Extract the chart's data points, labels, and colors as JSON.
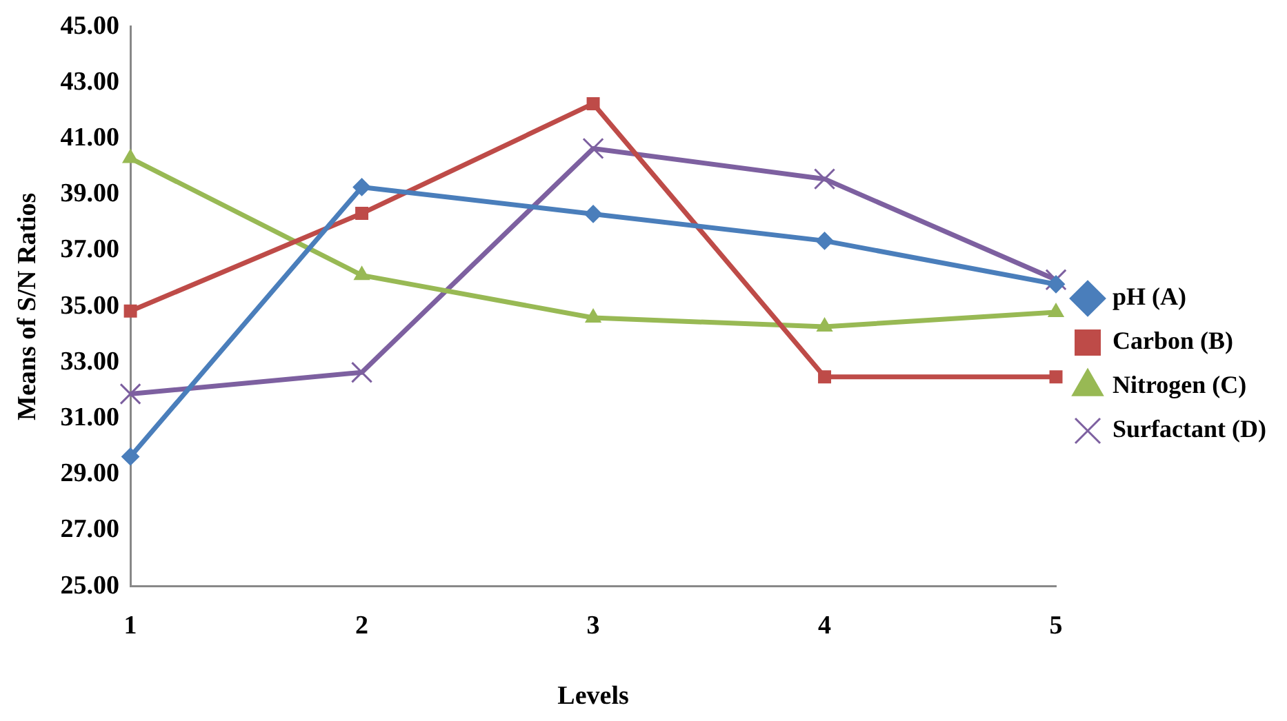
{
  "chart_data": {
    "type": "line",
    "xlabel": "Levels",
    "ylabel": "Means of S/N Ratios",
    "categories": [
      "1",
      "2",
      "3",
      "4",
      "5"
    ],
    "series": [
      {
        "name": "pH (A)",
        "color": "#4a7ebb",
        "marker": "diamond",
        "values": [
          29.64,
          39.27,
          38.31,
          37.35,
          35.8
        ]
      },
      {
        "name": "Carbon (B)",
        "color": "#be4b48",
        "marker": "square",
        "values": [
          34.84,
          38.33,
          42.25,
          32.49,
          32.49
        ]
      },
      {
        "name": "Nitrogen (C)",
        "color": "#98b954",
        "marker": "triangle",
        "values": [
          40.3,
          36.12,
          34.6,
          34.28,
          34.8
        ]
      },
      {
        "name": "Surfactant (D)",
        "color": "#7d60a0",
        "marker": "cross",
        "values": [
          31.88,
          32.65,
          40.65,
          39.56,
          35.96
        ]
      }
    ],
    "ylim": [
      25,
      45
    ],
    "yticks": [
      {
        "value": 25,
        "label": "25.00"
      },
      {
        "value": 27,
        "label": "27.00"
      },
      {
        "value": 29,
        "label": "29.00"
      },
      {
        "value": 31,
        "label": "31.00"
      },
      {
        "value": 33,
        "label": "33.00"
      },
      {
        "value": 35,
        "label": "35.00"
      },
      {
        "value": 37,
        "label": "37.00"
      },
      {
        "value": 39,
        "label": "39.00"
      },
      {
        "value": 41,
        "label": "41.00"
      },
      {
        "value": 43,
        "label": "43.00"
      },
      {
        "value": 45,
        "label": "45.00"
      }
    ],
    "grid": false,
    "legend": "right",
    "line_style": "solid"
  }
}
